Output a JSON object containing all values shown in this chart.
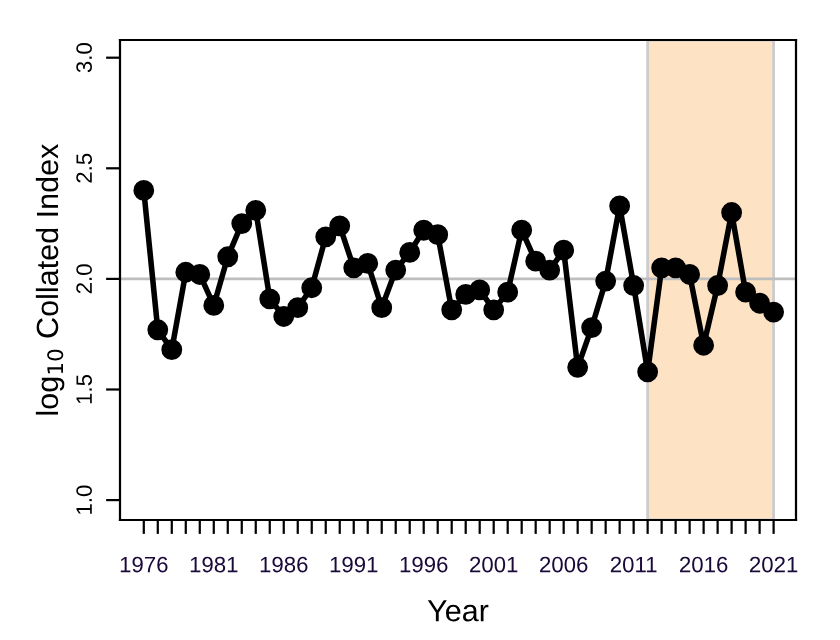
{
  "chart_data": {
    "type": "line",
    "xlabel": "Year",
    "ylabel": "log$_{10}$ Collated Index",
    "x": [
      1976,
      1977,
      1978,
      1979,
      1980,
      1981,
      1982,
      1983,
      1984,
      1985,
      1986,
      1987,
      1988,
      1989,
      1990,
      1991,
      1992,
      1993,
      1994,
      1995,
      1996,
      1997,
      1998,
      1999,
      2000,
      2001,
      2002,
      2003,
      2004,
      2005,
      2006,
      2007,
      2008,
      2009,
      2010,
      2011,
      2012,
      2013,
      2014,
      2015,
      2016,
      2017,
      2018,
      2019,
      2020,
      2021
    ],
    "series": [
      {
        "color": "#000000",
        "values": [
          2.4,
          1.77,
          1.68,
          2.03,
          2.02,
          1.88,
          2.1,
          2.25,
          2.31,
          1.91,
          1.83,
          1.87,
          1.96,
          2.19,
          2.24,
          2.05,
          2.07,
          1.87,
          2.04,
          2.12,
          2.22,
          2.2,
          1.86,
          1.93,
          1.95,
          1.86,
          1.94,
          2.22,
          2.08,
          2.04,
          2.13,
          1.6,
          1.78,
          1.99,
          2.33,
          1.97,
          1.58,
          2.05,
          2.05,
          2.02,
          1.7,
          1.97,
          2.3,
          1.94,
          1.89,
          1.85
        ]
      }
    ],
    "marker": "circle",
    "line_style": "solid",
    "grid": false,
    "legend": false,
    "xlim": [
      1974.3,
      2022.6
    ],
    "ylim": [
      0.91,
      3.08
    ],
    "xticks": [
      1976,
      {
        "value": 1977,
        "label": null
      },
      {
        "value": 1978,
        "label": null
      },
      {
        "value": 1979,
        "label": null
      },
      {
        "value": 1980,
        "label": null
      },
      1981,
      {
        "value": 1982,
        "label": null
      },
      {
        "value": 1983,
        "label": null
      },
      {
        "value": 1984,
        "label": null
      },
      {
        "value": 1985,
        "label": null
      },
      1986,
      {
        "value": 1987,
        "label": null
      },
      {
        "value": 1988,
        "label": null
      },
      {
        "value": 1989,
        "label": null
      },
      {
        "value": 1990,
        "label": null
      },
      1991,
      {
        "value": 1992,
        "label": null
      },
      {
        "value": 1993,
        "label": null
      },
      {
        "value": 1994,
        "label": null
      },
      {
        "value": 1995,
        "label": null
      },
      1996,
      {
        "value": 1997,
        "label": null
      },
      {
        "value": 1998,
        "label": null
      },
      {
        "value": 1999,
        "label": null
      },
      {
        "value": 2000,
        "label": null
      },
      2001,
      {
        "value": 2002,
        "label": null
      },
      {
        "value": 2003,
        "label": null
      },
      {
        "value": 2004,
        "label": null
      },
      {
        "value": 2005,
        "label": null
      },
      2006,
      {
        "value": 2007,
        "label": null
      },
      {
        "value": 2008,
        "label": null
      },
      {
        "value": 2009,
        "label": null
      },
      {
        "value": 2010,
        "label": null
      },
      2011,
      {
        "value": 2012,
        "label": null
      },
      {
        "value": 2013,
        "label": null
      },
      {
        "value": 2014,
        "label": null
      },
      {
        "value": 2015,
        "label": null
      },
      2016,
      {
        "value": 2017,
        "label": null
      },
      {
        "value": 2018,
        "label": null
      },
      {
        "value": 2019,
        "label": null
      },
      {
        "value": 2020,
        "label": null
      },
      2021
    ],
    "yticks": [
      {
        "value": 1.0,
        "label": "1.0"
      },
      1.5,
      {
        "value": 2.0,
        "label": "2.0"
      },
      2.5,
      {
        "value": 3.0,
        "label": "3.0"
      }
    ],
    "ref_lines": [
      {
        "axis": "y",
        "value": 2.0,
        "color": "#bebebe",
        "line_style": "solid"
      }
    ],
    "bands": [
      {
        "axis": "x",
        "from": 2012,
        "to": 2021,
        "color": "#fde3c4"
      }
    ]
  }
}
